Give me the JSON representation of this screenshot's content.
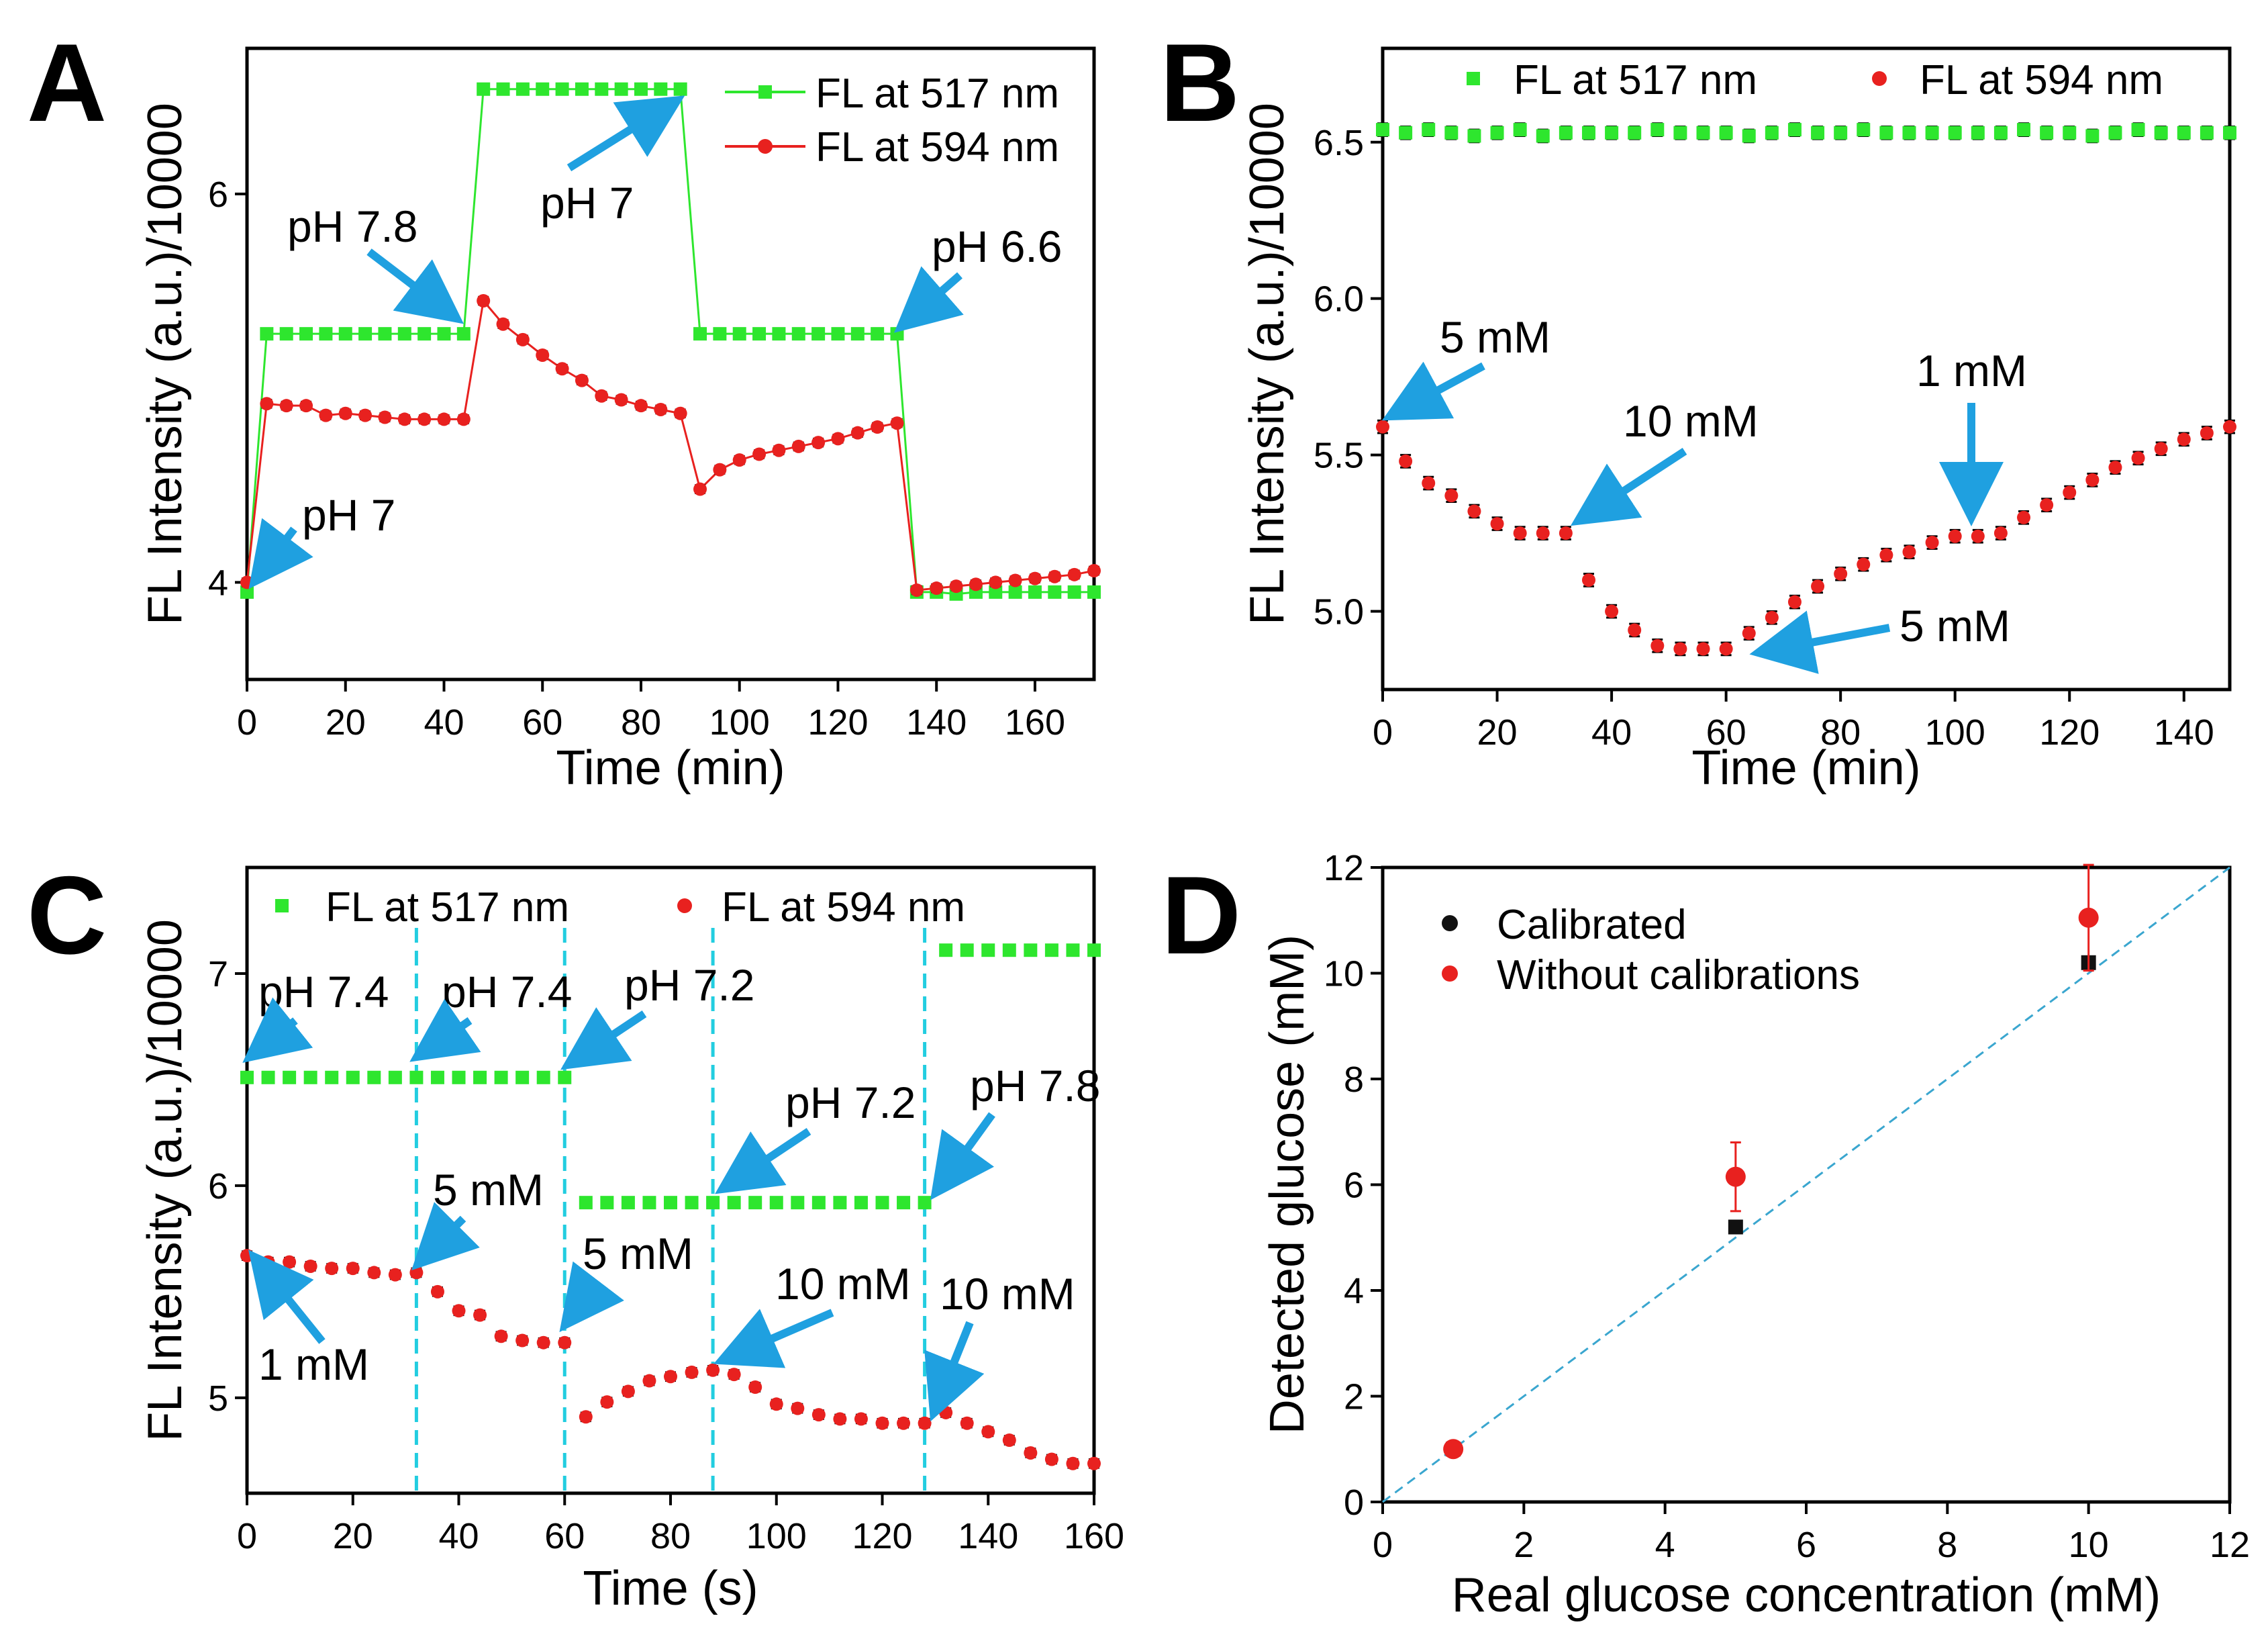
{
  "figure": {
    "colors": {
      "green": "#2ee62e",
      "red": "#e8211f",
      "arrow": "#1fa0e0",
      "cyan": "#22cde0",
      "black": "#111111"
    }
  },
  "chart_data": [
    {
      "panel": "A",
      "type": "line",
      "xlabel": "Time (min)",
      "ylabel": "FL Intensity (a.u.)/10000",
      "xlim": [
        0,
        172
      ],
      "ylim": [
        3.5,
        6.75
      ],
      "xticks": [
        0,
        20,
        40,
        60,
        80,
        100,
        120,
        140,
        160
      ],
      "yticks": [
        4,
        6
      ],
      "legend": [
        "FL at 517 nm",
        "FL at 594 nm"
      ],
      "legend_position": "top-right",
      "series": [
        {
          "name": "FL at 517 nm",
          "color": "#2ee62e",
          "x": [
            0,
            4,
            8,
            12,
            16,
            20,
            24,
            28,
            32,
            36,
            40,
            44,
            48,
            52,
            56,
            60,
            64,
            68,
            72,
            76,
            80,
            84,
            88,
            92,
            96,
            100,
            104,
            108,
            112,
            116,
            120,
            124,
            128,
            132,
            136,
            140,
            144,
            148,
            152,
            156,
            160,
            164,
            168,
            172
          ],
          "y": [
            3.95,
            5.28,
            5.28,
            5.28,
            5.28,
            5.28,
            5.28,
            5.28,
            5.28,
            5.28,
            5.28,
            5.28,
            6.54,
            6.54,
            6.54,
            6.54,
            6.54,
            6.54,
            6.54,
            6.54,
            6.54,
            6.54,
            6.54,
            5.28,
            5.28,
            5.28,
            5.28,
            5.28,
            5.28,
            5.28,
            5.28,
            5.28,
            5.28,
            5.28,
            3.95,
            3.95,
            3.94,
            3.95,
            3.95,
            3.95,
            3.95,
            3.95,
            3.95,
            3.95
          ]
        },
        {
          "name": "FL at 594 nm",
          "color": "#e8211f",
          "x": [
            0,
            4,
            8,
            12,
            16,
            20,
            24,
            28,
            32,
            36,
            40,
            44,
            48,
            52,
            56,
            60,
            64,
            68,
            72,
            76,
            80,
            84,
            88,
            92,
            96,
            100,
            104,
            108,
            112,
            116,
            120,
            124,
            128,
            132,
            136,
            140,
            144,
            148,
            152,
            156,
            160,
            164,
            168,
            172
          ],
          "y": [
            4.0,
            4.92,
            4.91,
            4.91,
            4.86,
            4.87,
            4.86,
            4.85,
            4.84,
            4.84,
            4.84,
            4.84,
            5.45,
            5.33,
            5.25,
            5.17,
            5.1,
            5.04,
            4.96,
            4.94,
            4.91,
            4.89,
            4.87,
            4.48,
            4.58,
            4.63,
            4.66,
            4.68,
            4.7,
            4.72,
            4.74,
            4.77,
            4.8,
            4.82,
            3.96,
            3.97,
            3.98,
            3.99,
            4.0,
            4.01,
            4.02,
            4.03,
            4.04,
            4.06
          ]
        }
      ],
      "annotations": [
        "pH 7.8",
        "pH 7",
        "pH 6.6",
        "pH 7"
      ]
    },
    {
      "panel": "B",
      "type": "scatter",
      "xlabel": "Time (min)",
      "ylabel": "FL Intensity (a.u.)/10000",
      "xlim": [
        0,
        148
      ],
      "ylim": [
        4.75,
        6.8
      ],
      "xticks": [
        0,
        20,
        40,
        60,
        80,
        100,
        120,
        140
      ],
      "yticks": [
        "5.0",
        "5.5",
        "6.0",
        "6.5"
      ],
      "legend": [
        "FL at 517 nm",
        "FL at 594 nm"
      ],
      "legend_position": "top",
      "series": [
        {
          "name": "FL at 517 nm",
          "color": "#2ee62e",
          "x": [
            0,
            4,
            8,
            12,
            16,
            20,
            24,
            28,
            32,
            36,
            40,
            44,
            48,
            52,
            56,
            60,
            64,
            68,
            72,
            76,
            80,
            84,
            88,
            92,
            96,
            100,
            104,
            108,
            112,
            116,
            120,
            124,
            128,
            132,
            136,
            140,
            144,
            148
          ],
          "y": [
            6.54,
            6.53,
            6.54,
            6.53,
            6.52,
            6.53,
            6.54,
            6.52,
            6.53,
            6.53,
            6.53,
            6.53,
            6.54,
            6.53,
            6.53,
            6.53,
            6.52,
            6.53,
            6.54,
            6.53,
            6.53,
            6.54,
            6.53,
            6.53,
            6.53,
            6.53,
            6.53,
            6.53,
            6.54,
            6.53,
            6.53,
            6.52,
            6.53,
            6.54,
            6.53,
            6.53,
            6.53,
            6.53
          ]
        },
        {
          "name": "FL at 594 nm",
          "color": "#e8211f",
          "x": [
            0,
            4,
            8,
            12,
            16,
            20,
            24,
            28,
            32,
            36,
            40,
            44,
            48,
            52,
            56,
            60,
            64,
            68,
            72,
            76,
            80,
            84,
            88,
            92,
            96,
            100,
            104,
            108,
            112,
            116,
            120,
            124,
            128,
            132,
            136,
            140,
            144,
            148
          ],
          "y": [
            5.59,
            5.48,
            5.41,
            5.37,
            5.32,
            5.28,
            5.25,
            5.25,
            5.25,
            5.1,
            5.0,
            4.94,
            4.89,
            4.88,
            4.88,
            4.88,
            4.93,
            4.98,
            5.03,
            5.08,
            5.12,
            5.15,
            5.18,
            5.19,
            5.22,
            5.24,
            5.24,
            5.25,
            5.3,
            5.34,
            5.38,
            5.42,
            5.46,
            5.49,
            5.52,
            5.55,
            5.57,
            5.59
          ]
        }
      ],
      "annotations": [
        "5 mM",
        "10 mM",
        "1 mM",
        "5 mM"
      ]
    },
    {
      "panel": "C",
      "type": "scatter",
      "xlabel": "Time (s)",
      "ylabel": "FL Intensity (a.u.)/10000",
      "xlim": [
        0,
        160
      ],
      "ylim": [
        4.55,
        7.5
      ],
      "xticks": [
        0,
        20,
        40,
        60,
        80,
        100,
        120,
        140,
        160
      ],
      "yticks": [
        5,
        6,
        7
      ],
      "legend": [
        "FL at 517 nm",
        "FL at 594 nm"
      ],
      "legend_position": "top",
      "vlines": [
        32,
        60,
        88,
        128
      ],
      "series": [
        {
          "name": "FL at 517 nm",
          "color": "#2ee62e",
          "x": [
            0,
            4,
            8,
            12,
            16,
            20,
            24,
            28,
            32,
            36,
            40,
            44,
            48,
            52,
            56,
            60,
            64,
            68,
            72,
            76,
            80,
            84,
            88,
            92,
            96,
            100,
            104,
            108,
            112,
            116,
            120,
            124,
            128,
            132,
            136,
            140,
            144,
            148,
            152,
            156,
            160
          ],
          "y": [
            6.51,
            6.51,
            6.51,
            6.51,
            6.51,
            6.51,
            6.51,
            6.51,
            6.51,
            6.51,
            6.51,
            6.51,
            6.51,
            6.51,
            6.51,
            6.51,
            5.92,
            5.92,
            5.92,
            5.92,
            5.92,
            5.92,
            5.92,
            5.92,
            5.92,
            5.92,
            5.92,
            5.92,
            5.92,
            5.92,
            5.92,
            5.92,
            5.92,
            7.11,
            7.11,
            7.11,
            7.11,
            7.11,
            7.11,
            7.11,
            7.11
          ]
        },
        {
          "name": "FL at 594 nm",
          "color": "#e8211f",
          "x": [
            0,
            4,
            8,
            12,
            16,
            20,
            24,
            28,
            32,
            36,
            40,
            44,
            48,
            52,
            56,
            60,
            64,
            68,
            72,
            76,
            80,
            84,
            88,
            92,
            96,
            100,
            104,
            108,
            112,
            116,
            120,
            124,
            128,
            132,
            136,
            140,
            144,
            148,
            152,
            156,
            160
          ],
          "y": [
            5.67,
            5.64,
            5.64,
            5.62,
            5.61,
            5.61,
            5.59,
            5.58,
            5.59,
            5.5,
            5.41,
            5.39,
            5.29,
            5.27,
            5.26,
            5.26,
            4.91,
            4.98,
            5.03,
            5.08,
            5.1,
            5.12,
            5.13,
            5.11,
            5.05,
            4.97,
            4.95,
            4.92,
            4.9,
            4.9,
            4.88,
            4.88,
            4.88,
            4.93,
            4.88,
            4.84,
            4.8,
            4.74,
            4.71,
            4.69,
            4.69
          ]
        }
      ],
      "annotations": [
        "pH 7.4",
        "pH 7.4",
        "pH 7.2",
        "pH 7.2",
        "pH 7.8",
        "1 mM",
        "5 mM",
        "5 mM",
        "10 mM",
        "10 mM"
      ]
    },
    {
      "panel": "D",
      "type": "scatter",
      "xlabel": "Real glucose concentration (mM)",
      "ylabel": "Detected glucose (mM)",
      "xlim": [
        0,
        12
      ],
      "ylim": [
        0,
        12
      ],
      "xticks": [
        0,
        2,
        4,
        6,
        8,
        10,
        12
      ],
      "yticks": [
        0,
        2,
        4,
        6,
        8,
        10,
        12
      ],
      "legend": [
        "Calibrated",
        "Without calibrations"
      ],
      "legend_position": "top-left",
      "reference_line": "y = x",
      "series": [
        {
          "name": "Calibrated",
          "color": "#111111",
          "x": [
            1,
            5,
            10
          ],
          "y": [
            1.0,
            5.2,
            10.2
          ],
          "err": [
            0.08,
            0.1,
            0.1
          ]
        },
        {
          "name": "Without calibrations",
          "color": "#e8211f",
          "x": [
            1,
            5,
            10
          ],
          "y": [
            1.0,
            6.15,
            11.05
          ],
          "err": [
            0.08,
            0.65,
            1.0
          ]
        }
      ]
    }
  ]
}
